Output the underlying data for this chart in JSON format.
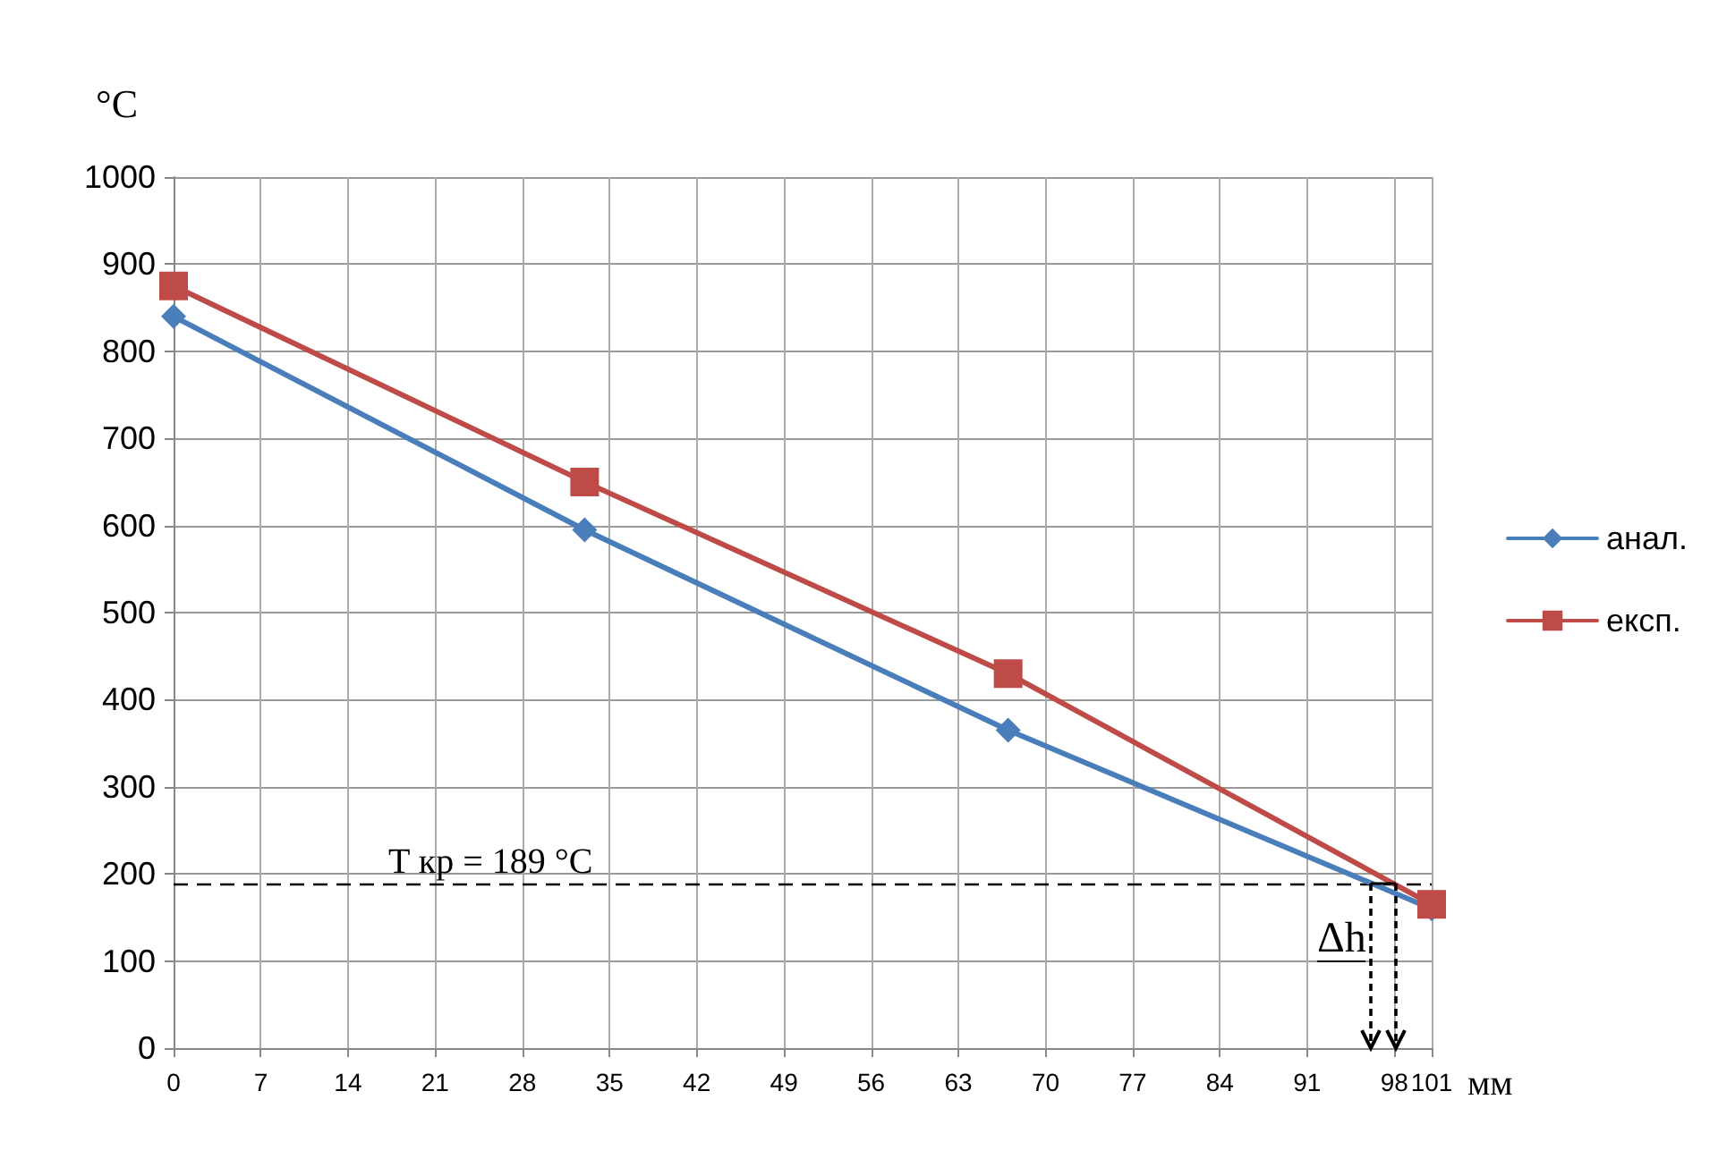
{
  "chart_data": {
    "type": "line",
    "ylabel": "°C",
    "xlabel": "мм",
    "xlim": [
      0,
      101
    ],
    "xticks": [
      0,
      7,
      14,
      21,
      28,
      35,
      42,
      49,
      56,
      63,
      70,
      77,
      84,
      91,
      98,
      101
    ],
    "ylim": [
      0,
      1000
    ],
    "yticks": [
      0,
      100,
      200,
      300,
      400,
      500,
      600,
      700,
      800,
      900,
      1000
    ],
    "x": [
      0,
      33,
      67,
      101
    ],
    "series": [
      {
        "name": "анал.",
        "color": "#4a7ebb",
        "marker": "diamond",
        "values": [
          840,
          595,
          365,
          160
        ]
      },
      {
        "name": "експ.",
        "color": "#be4b48",
        "marker": "square",
        "values": [
          875,
          650,
          430,
          165
        ]
      }
    ],
    "ref_lines": [
      {
        "axis": "y",
        "value": 189,
        "label": "T кр = 189 °C",
        "color": "#000000",
        "line_style": "dashed"
      }
    ],
    "annotations": [
      "Δh"
    ],
    "grid": true,
    "legend": "right",
    "line_style": "solid"
  }
}
